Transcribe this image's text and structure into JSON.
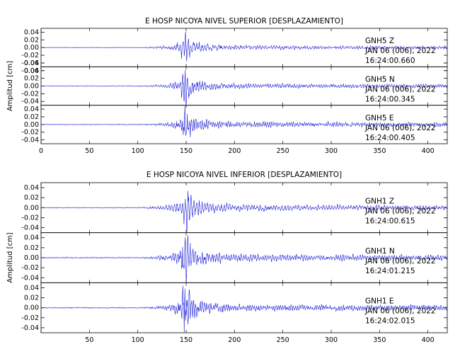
{
  "colors": {
    "trace": "#1f1fd8",
    "axis": "#000000",
    "background": "#ffffff"
  },
  "chart_data": [
    {
      "type": "line",
      "title": "E HOSP NICOYA NIVEL SUPERIOR [DESPLAZAMIENTO]",
      "ylabel": "Amplitud [cm]",
      "xlabel": "",
      "xlim": [
        0,
        420
      ],
      "x_ticks": [
        "0",
        "50",
        "100",
        "150",
        "200",
        "250",
        "300",
        "350",
        "400"
      ],
      "panels": [
        {
          "station": "GNH5",
          "component": "Z",
          "date": "JAN 06 (006), 2022",
          "time": "16:24:00.660",
          "ylim": [
            -0.05,
            0.05
          ],
          "y_ticks": [
            "0.04",
            "0.02",
            "0.00",
            "-0.02",
            "-0.04",
            "-0.06"
          ],
          "peak_amplitude": 0.035,
          "peak_time": 148
        },
        {
          "station": "GNH5",
          "component": "N",
          "date": "JAN 06 (006), 2022",
          "time": "16:24:00.345",
          "ylim": [
            -0.05,
            0.05
          ],
          "y_ticks": [
            "0.06",
            "0.04",
            "0.02",
            "0.00",
            "-0.02",
            "-0.04"
          ],
          "peak_amplitude": 0.04,
          "peak_time": 148
        },
        {
          "station": "GNH5",
          "component": "E",
          "date": "JAN 06 (006), 2022",
          "time": "16:24:00.405",
          "ylim": [
            -0.05,
            0.05
          ],
          "y_ticks": [
            "0.04",
            "0.02",
            "0.00",
            "-0.02",
            "-0.04"
          ],
          "peak_amplitude": 0.045,
          "peak_time": 148
        }
      ]
    },
    {
      "type": "line",
      "title": "E HOSP NICOYA NIVEL INFERIOR [DESPLAZAMIENTO]",
      "ylabel": "Amplitud [cm]",
      "xlabel": "",
      "xlim": [
        0,
        420
      ],
      "x_ticks": [
        "50",
        "100",
        "150",
        "200",
        "250",
        "300",
        "350",
        "400"
      ],
      "panels": [
        {
          "station": "GNH1",
          "component": "Z",
          "date": "JAN 06 (006), 2022",
          "time": "16:24:00.615",
          "ylim": [
            -0.05,
            0.05
          ],
          "y_ticks": [
            "0.04",
            "0.02",
            "0.00",
            "-0.02",
            "-0.04"
          ],
          "peak_amplitude": 0.04,
          "peak_time": 149
        },
        {
          "station": "GNH1",
          "component": "N",
          "date": "JAN 06 (006), 2022",
          "time": "16:24:01.215",
          "ylim": [
            -0.05,
            0.05
          ],
          "y_ticks": [
            "0.04",
            "0.02",
            "0.00",
            "-0.02",
            "-0.04"
          ],
          "peak_amplitude": 0.045,
          "peak_time": 148
        },
        {
          "station": "GNH1",
          "component": "E",
          "date": "JAN 06 (006), 2022",
          "time": "16:24:02.015",
          "ylim": [
            -0.05,
            0.05
          ],
          "y_ticks": [
            "0.04",
            "0.02",
            "0.00",
            "-0.02",
            "-0.04"
          ],
          "peak_amplitude": 0.045,
          "peak_time": 148
        }
      ]
    }
  ]
}
